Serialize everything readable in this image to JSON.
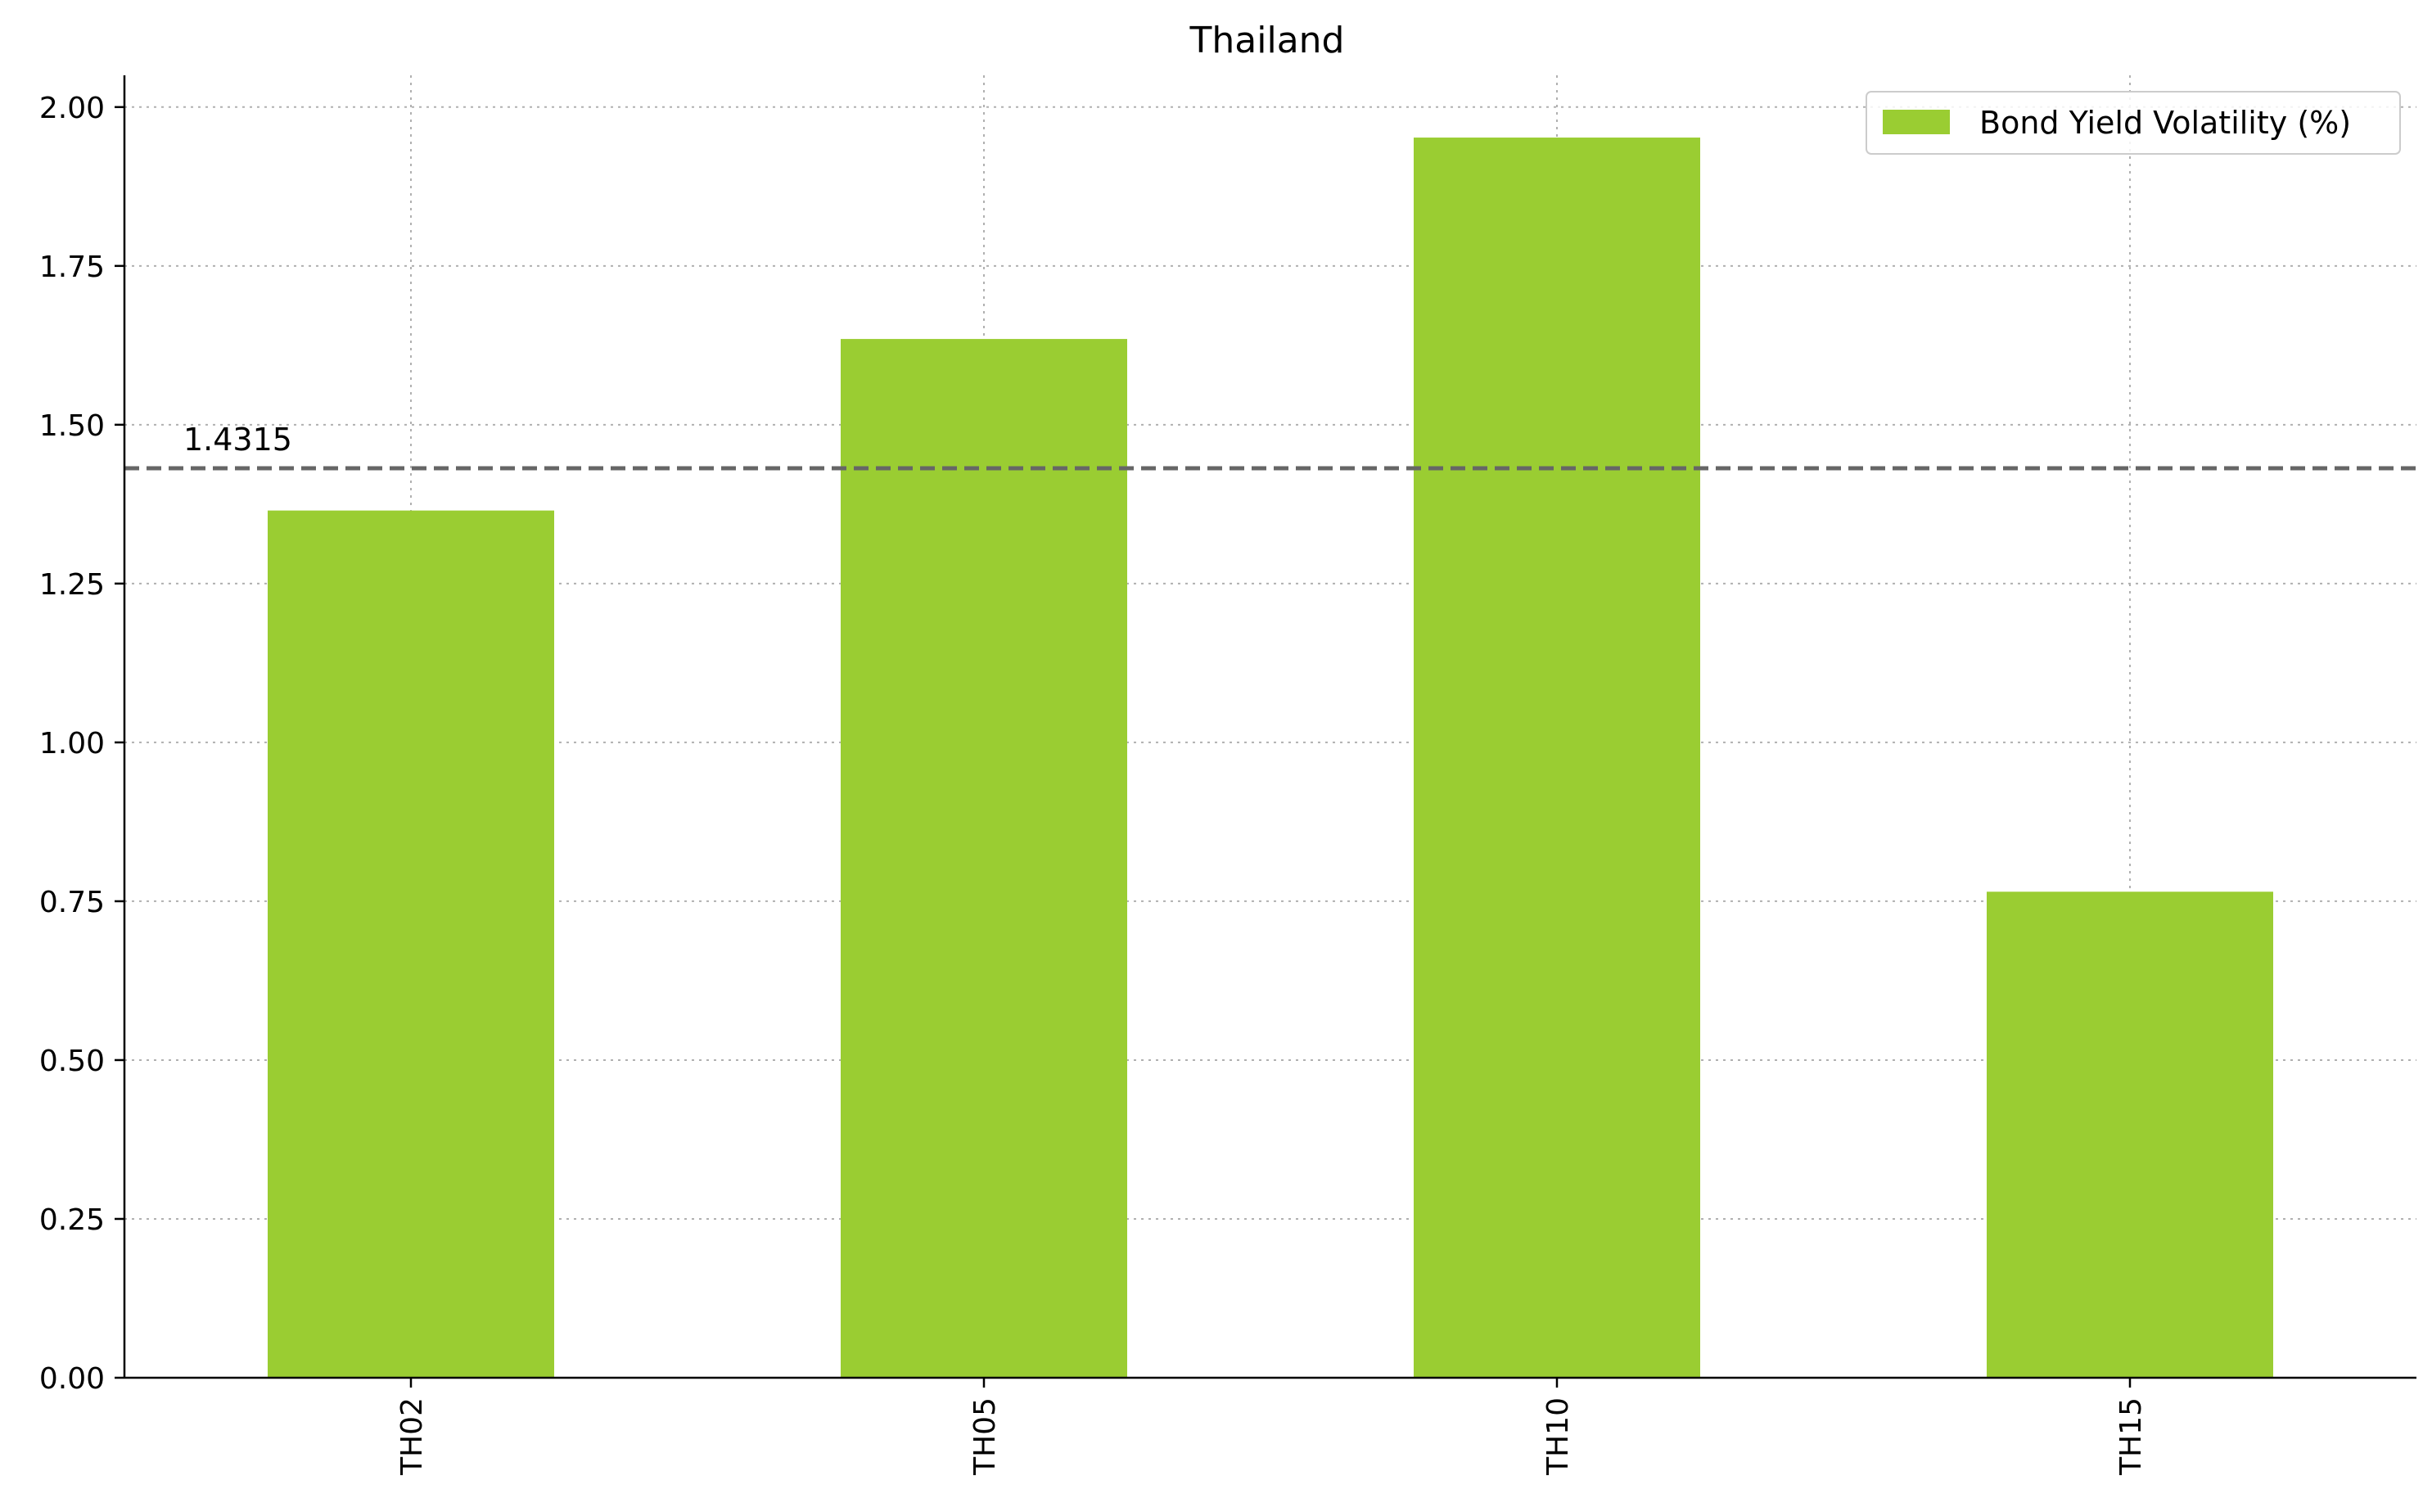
{
  "chart_data": {
    "type": "bar",
    "title": "Thailand",
    "xlabel": "",
    "ylabel": "",
    "categories": [
      "TH02",
      "TH05",
      "TH10",
      "TH15"
    ],
    "series": [
      {
        "name": "Bond Yield Volatility (%)",
        "values": [
          1.365,
          1.635,
          1.952,
          0.765
        ]
      }
    ],
    "ylim": [
      0,
      2.05
    ],
    "yticks": [
      0.0,
      0.25,
      0.5,
      0.75,
      1.0,
      1.25,
      1.5,
      1.75,
      2.0
    ],
    "ytick_labels": [
      "0.00",
      "0.25",
      "0.50",
      "0.75",
      "1.00",
      "1.25",
      "1.50",
      "1.75",
      "2.00"
    ],
    "reference_line": {
      "value": 1.4315,
      "label": "1.4315",
      "style": "dashed",
      "color": "#666666"
    },
    "bar_color": "#9acd32",
    "grid": true,
    "legend_position": "top-right"
  }
}
